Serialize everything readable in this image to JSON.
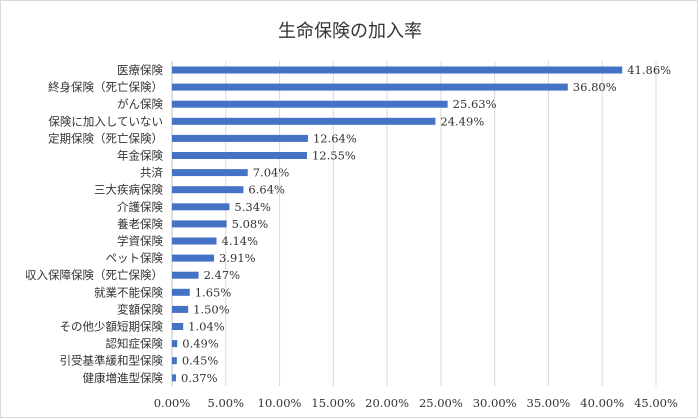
{
  "chart_data": {
    "type": "bar",
    "orientation": "horizontal",
    "title": "生命保険の加入率",
    "categories": [
      "医療保険",
      "終身保険（死亡保険）",
      "がん保険",
      "保険に加入していない",
      "定期保険（死亡保険）",
      "年金保険",
      "共済",
      "三大疾病保険",
      "介護保険",
      "養老保険",
      "学資保険",
      "ペット保険",
      "収入保障保険（死亡保険）",
      "就業不能保険",
      "変額保険",
      "その他少額短期保険",
      "認知症保険",
      "引受基準緩和型保険",
      "健康増進型保険"
    ],
    "values": [
      41.86,
      36.8,
      25.63,
      24.49,
      12.64,
      12.55,
      7.04,
      6.64,
      5.34,
      5.08,
      4.14,
      3.91,
      2.47,
      1.65,
      1.5,
      1.04,
      0.49,
      0.45,
      0.37
    ],
    "value_labels": [
      "41.86%",
      "36.80%",
      "25.63%",
      "24.49%",
      "12.64%",
      "12.55%",
      "7.04%",
      "6.64%",
      "5.34%",
      "5.08%",
      "4.14%",
      "3.91%",
      "2.47%",
      "1.65%",
      "1.50%",
      "1.04%",
      "0.49%",
      "0.45%",
      "0.37%"
    ],
    "xlim": [
      0,
      45
    ],
    "x_ticks": [
      0,
      5,
      10,
      15,
      20,
      25,
      30,
      35,
      40,
      45
    ],
    "x_tick_labels": [
      "0.00%",
      "5.00%",
      "10.00%",
      "15.00%",
      "20.00%",
      "25.00%",
      "30.00%",
      "35.00%",
      "40.00%",
      "45.00%"
    ],
    "grid": true,
    "legend": "none",
    "bar_color": "#4472c4"
  }
}
